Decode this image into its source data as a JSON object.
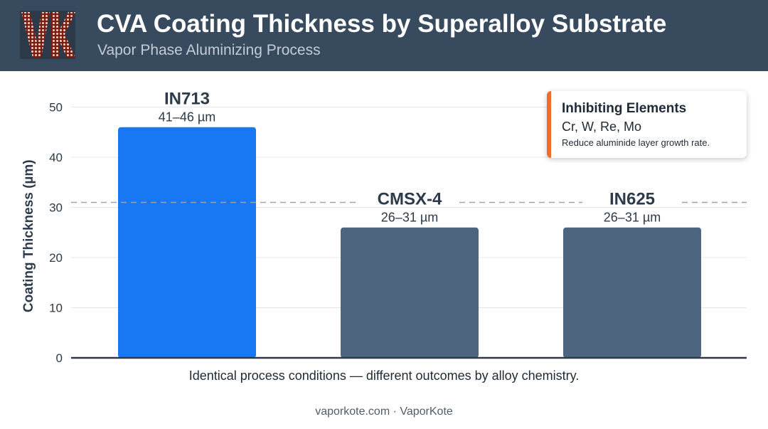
{
  "header": {
    "title": "CVA Coating Thickness by Superalloy Substrate",
    "subtitle": "Vapor Phase Aluminizing Process",
    "logo": "VK"
  },
  "chart_data": {
    "type": "bar",
    "ylabel": "Coating Thickness (µm)",
    "ylim": [
      0,
      55
    ],
    "yticks": [
      0,
      10,
      20,
      30,
      40,
      50
    ],
    "categories": [
      "IN713",
      "CMSX-4",
      "IN625"
    ],
    "values": [
      46,
      26,
      26
    ],
    "ranges": [
      "41–46 µm",
      "26–31 µm",
      "26–31 µm"
    ],
    "colors": [
      "#1877f2",
      "#4d657e",
      "#4d657e"
    ],
    "reference_line": 31,
    "grid": true
  },
  "legend": {
    "title": "Inhibiting Elements",
    "elements": "Cr, W, Re, Mo",
    "note": "Reduce aluminide layer growth rate.",
    "accent_color": "#f26b2a"
  },
  "caption": "Identical process conditions — different outcomes by alloy chemistry.",
  "footer": "vaporkote.com · VaporKote"
}
